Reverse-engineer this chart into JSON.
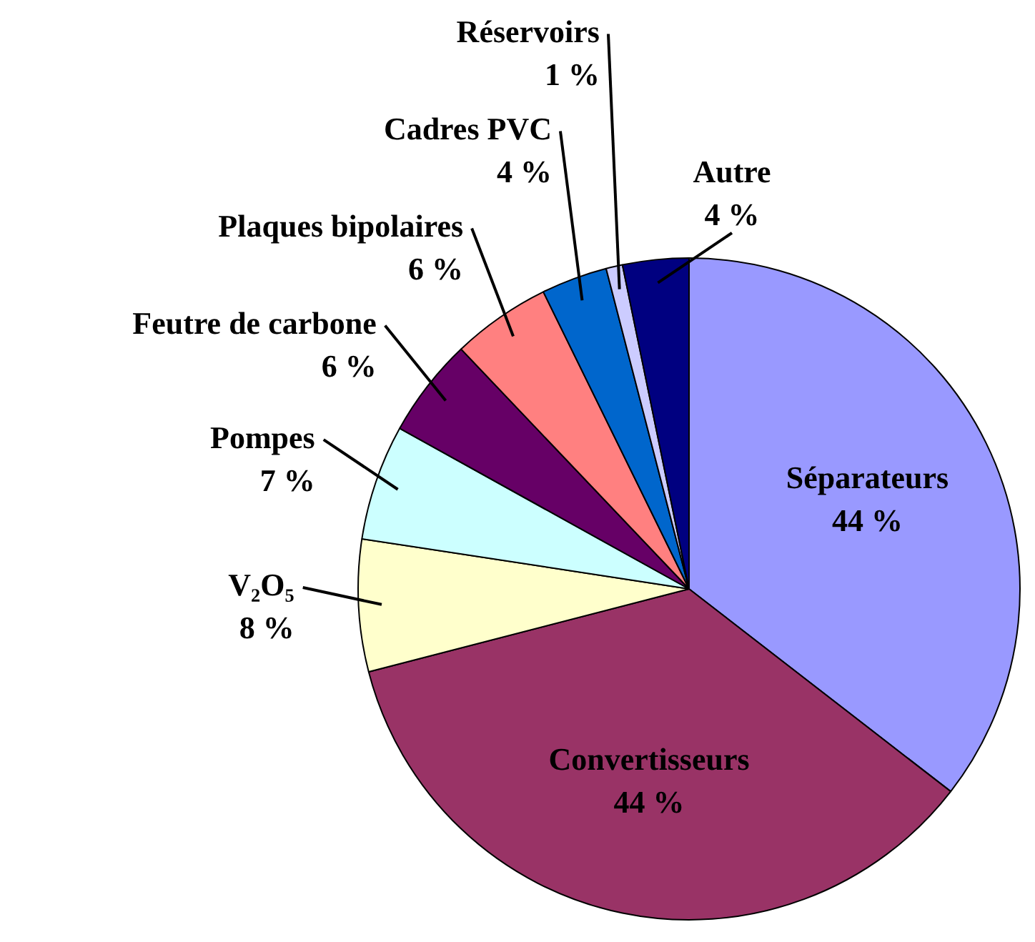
{
  "chart_data": {
    "type": "pie",
    "categories": [
      "Séparateurs",
      "Convertisseurs",
      "V₂O₅",
      "Pompes",
      "Feutre de carbone",
      "Plaques bipolaires",
      "Cadres PVC",
      "Réservoirs",
      "Autre"
    ],
    "values": [
      44,
      44,
      8,
      7,
      6,
      6,
      4,
      1,
      4
    ],
    "value_labels": [
      "44 %",
      "44 %",
      "8 %",
      "7 %",
      "6 %",
      "6 %",
      "4 %",
      "1 %",
      "4 %"
    ],
    "colors": [
      "#9999ff",
      "#993366",
      "#ffffcc",
      "#ccffff",
      "#660066",
      "#ff8080",
      "#0066cc",
      "#ccccff",
      "#000080"
    ],
    "legend": false
  }
}
